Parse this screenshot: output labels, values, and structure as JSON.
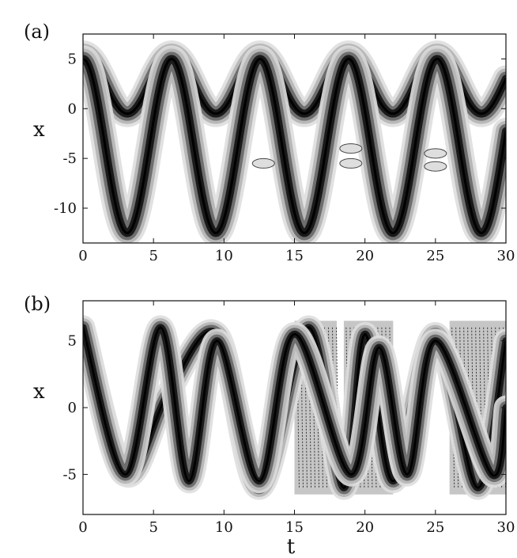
{
  "chart_data": [
    {
      "panel_label": "(a)",
      "type": "heatmap",
      "plot_style": "filled contour plot, grayscale",
      "xlabel": "",
      "ylabel": "x",
      "xlim": [
        0,
        30
      ],
      "ylim": [
        -13.5,
        7.5
      ],
      "xticks": [
        0,
        5,
        10,
        15,
        20,
        25,
        30
      ],
      "yticks": [
        5,
        0,
        -5,
        -10
      ],
      "grid": false,
      "colors": {
        "band_dark": "#1a1a1a",
        "band_mid": "#6e6e6e",
        "band_light": "#b8b8b8",
        "band_faint": "#dedede",
        "background": "#ffffff"
      },
      "features": {
        "upper_band": {
          "center": 2.5,
          "amplitude": 3.0,
          "period": 6.28,
          "crest_t": [
            0,
            6.4,
            12.7,
            19.0,
            25.2
          ]
        },
        "lower_band": {
          "center": -3.75,
          "amplitude": 8.75,
          "period": 6.28,
          "crest_t": [
            0,
            6.4,
            12.7,
            19.0,
            25.2
          ],
          "trough_t": [
            3.2,
            9.5,
            15.8,
            22.1,
            28.3
          ]
        },
        "faint_blobs": [
          {
            "t": 12.8,
            "x": -5.5
          },
          {
            "t": 19.0,
            "x": -4.0
          },
          {
            "t": 19.0,
            "x": -5.5
          },
          {
            "t": 25.0,
            "x": -4.5
          },
          {
            "t": 25.0,
            "x": -5.8
          }
        ]
      }
    },
    {
      "panel_label": "(b)",
      "type": "heatmap",
      "plot_style": "filled contour plot, grayscale",
      "xlabel": "t",
      "ylabel": "x",
      "xlim": [
        0,
        30
      ],
      "ylim": [
        -8,
        8
      ],
      "xticks": [
        0,
        5,
        10,
        15,
        20,
        25,
        30
      ],
      "yticks": [
        5,
        0,
        -5
      ],
      "grid": false,
      "colors": {
        "band_dark": "#1a1a1a",
        "band_mid": "#6e6e6e",
        "band_light": "#b8b8b8",
        "band_faint": "#dedede",
        "background": "#ffffff"
      },
      "features": {
        "path_1": {
          "points": [
            [
              0,
              6
            ],
            [
              3,
              -5
            ],
            [
              6,
              1
            ],
            [
              9.5,
              5.5
            ],
            [
              12.5,
              -6
            ],
            [
              16,
              6
            ],
            [
              18.5,
              -6
            ],
            [
              20,
              5.5
            ],
            [
              22,
              -5.5
            ],
            [
              25,
              5.5
            ],
            [
              28,
              -6
            ],
            [
              30,
              5
            ]
          ]
        },
        "path_2": {
          "points": [
            [
              0,
              6
            ],
            [
              3,
              -5
            ],
            [
              5.5,
              6
            ],
            [
              7.5,
              -5.5
            ],
            [
              9.5,
              5
            ],
            [
              12.5,
              -5.5
            ],
            [
              15,
              5.5
            ],
            [
              19,
              -5
            ],
            [
              21,
              4.5
            ],
            [
              23,
              -5
            ],
            [
              25,
              5
            ],
            [
              29,
              -5
            ],
            [
              30,
              0
            ]
          ]
        },
        "dense_ripple_regions_t": [
          [
            15,
            18
          ],
          [
            18.5,
            22
          ],
          [
            26,
            30
          ]
        ]
      }
    }
  ]
}
